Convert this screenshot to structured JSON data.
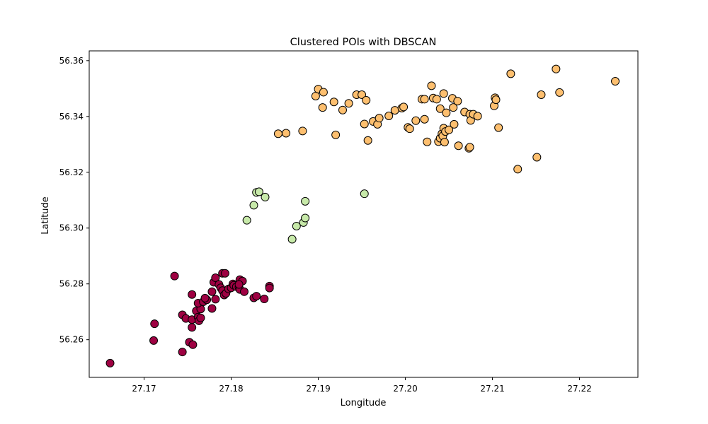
{
  "chart_data": {
    "type": "scatter",
    "title": "Clustered POIs with DBSCAN",
    "xlabel": "Longitude",
    "ylabel": "Latitude",
    "xlim": [
      27.1637,
      27.2267
    ],
    "ylim": [
      56.2465,
      56.3635
    ],
    "xticks": [
      27.17,
      27.18,
      27.19,
      27.2,
      27.21,
      27.22
    ],
    "yticks": [
      56.26,
      56.28,
      56.3,
      56.32,
      56.34,
      56.36
    ],
    "grid": false,
    "legend": "none",
    "series": [
      {
        "color": "#9e0142",
        "points": [
          [
            27.1661,
            56.2516
          ],
          [
            27.1711,
            56.2597
          ],
          [
            27.1712,
            56.2657
          ],
          [
            27.1744,
            56.2556
          ],
          [
            27.1752,
            56.2591
          ],
          [
            27.1756,
            56.2582
          ],
          [
            27.1755,
            56.2644
          ],
          [
            27.1744,
            56.2689
          ],
          [
            27.1748,
            56.2676
          ],
          [
            27.1755,
            56.2672
          ],
          [
            27.176,
            56.2703
          ],
          [
            27.1762,
            56.2681
          ],
          [
            27.1763,
            56.2668
          ],
          [
            27.1765,
            56.2678
          ],
          [
            27.1765,
            56.271
          ],
          [
            27.1762,
            56.2731
          ],
          [
            27.1768,
            56.2736
          ],
          [
            27.1772,
            56.2743
          ],
          [
            27.177,
            56.2749
          ],
          [
            27.1778,
            56.2712
          ],
          [
            27.1755,
            56.2762
          ],
          [
            27.1735,
            56.2828
          ],
          [
            27.1778,
            56.2772
          ],
          [
            27.1782,
            56.2745
          ],
          [
            27.178,
            56.2806
          ],
          [
            27.1782,
            56.2822
          ],
          [
            27.1786,
            56.2798
          ],
          [
            27.1788,
            56.2786
          ],
          [
            27.179,
            56.2838
          ],
          [
            27.1793,
            56.2838
          ],
          [
            27.179,
            56.2776
          ],
          [
            27.1792,
            56.276
          ],
          [
            27.1794,
            56.2766
          ],
          [
            27.1797,
            56.2782
          ],
          [
            27.18,
            56.2786
          ],
          [
            27.1802,
            56.28
          ],
          [
            27.1803,
            56.2795
          ],
          [
            27.1806,
            56.279
          ],
          [
            27.1809,
            56.2788
          ],
          [
            27.181,
            56.278
          ],
          [
            27.181,
            56.2815
          ],
          [
            27.1813,
            56.281
          ],
          [
            27.1809,
            56.2798
          ],
          [
            27.1815,
            56.2772
          ],
          [
            27.1826,
            56.275
          ],
          [
            27.1829,
            56.2756
          ],
          [
            27.1838,
            56.2746
          ],
          [
            27.1844,
            56.2792
          ],
          [
            27.1844,
            56.2785
          ]
        ]
      },
      {
        "color": "#c7e9a9",
        "points": [
          [
            27.1818,
            56.3028
          ],
          [
            27.1826,
            56.3082
          ],
          [
            27.1829,
            56.3128
          ],
          [
            27.1832,
            56.313
          ],
          [
            27.1839,
            56.3111
          ],
          [
            27.187,
            56.296
          ],
          [
            27.1875,
            56.3007
          ],
          [
            27.1883,
            56.302
          ],
          [
            27.1885,
            56.3036
          ],
          [
            27.1885,
            56.3096
          ],
          [
            27.1953,
            56.3123
          ]
        ]
      },
      {
        "color": "#fdbf6f",
        "points": [
          [
            27.1854,
            56.3338
          ],
          [
            27.1863,
            56.334
          ],
          [
            27.1882,
            56.3348
          ],
          [
            27.1897,
            56.3473
          ],
          [
            27.19,
            56.3498
          ],
          [
            27.1905,
            56.3432
          ],
          [
            27.1906,
            56.3487
          ],
          [
            27.1918,
            56.3452
          ],
          [
            27.192,
            56.3334
          ],
          [
            27.1928,
            56.3423
          ],
          [
            27.1935,
            56.3447
          ],
          [
            27.1944,
            56.3478
          ],
          [
            27.195,
            56.3478
          ],
          [
            27.1953,
            56.3373
          ],
          [
            27.1955,
            56.3458
          ],
          [
            27.1957,
            56.3314
          ],
          [
            27.1963,
            56.3382
          ],
          [
            27.1968,
            56.3372
          ],
          [
            27.197,
            56.3394
          ],
          [
            27.1981,
            56.3402
          ],
          [
            27.1988,
            56.3422
          ],
          [
            27.1996,
            56.343
          ],
          [
            27.1998,
            56.3434
          ],
          [
            27.2003,
            56.3361
          ],
          [
            27.2005,
            56.3356
          ],
          [
            27.2012,
            56.3385
          ],
          [
            27.2019,
            56.3462
          ],
          [
            27.2022,
            56.339
          ],
          [
            27.2022,
            56.3462
          ],
          [
            27.2025,
            56.3309
          ],
          [
            27.203,
            56.351
          ],
          [
            27.2032,
            56.3466
          ],
          [
            27.2036,
            56.3462
          ],
          [
            27.2038,
            56.331
          ],
          [
            27.204,
            56.3322
          ],
          [
            27.204,
            56.3428
          ],
          [
            27.2042,
            56.3338
          ],
          [
            27.2043,
            56.333
          ],
          [
            27.2044,
            56.3482
          ],
          [
            27.2044,
            56.3358
          ],
          [
            27.2045,
            56.3308
          ],
          [
            27.2046,
            56.3346
          ],
          [
            27.2047,
            56.3413
          ],
          [
            27.205,
            56.3352
          ],
          [
            27.2054,
            56.3465
          ],
          [
            27.2055,
            56.3432
          ],
          [
            27.2056,
            56.3372
          ],
          [
            27.206,
            56.3455
          ],
          [
            27.2061,
            56.3295
          ],
          [
            27.2068,
            56.3416
          ],
          [
            27.2073,
            56.3286
          ],
          [
            27.2074,
            56.329
          ],
          [
            27.2074,
            56.3408
          ],
          [
            27.2075,
            56.3386
          ],
          [
            27.2078,
            56.3408
          ],
          [
            27.2083,
            56.3401
          ],
          [
            27.2102,
            56.3438
          ],
          [
            27.2103,
            56.3467
          ],
          [
            27.2104,
            56.346
          ],
          [
            27.2107,
            56.336
          ],
          [
            27.2121,
            56.3553
          ],
          [
            27.2129,
            56.3211
          ],
          [
            27.2151,
            56.3254
          ],
          [
            27.2156,
            56.3478
          ],
          [
            27.2173,
            56.357
          ],
          [
            27.2177,
            56.3486
          ],
          [
            27.2241,
            56.3526
          ]
        ]
      }
    ]
  }
}
